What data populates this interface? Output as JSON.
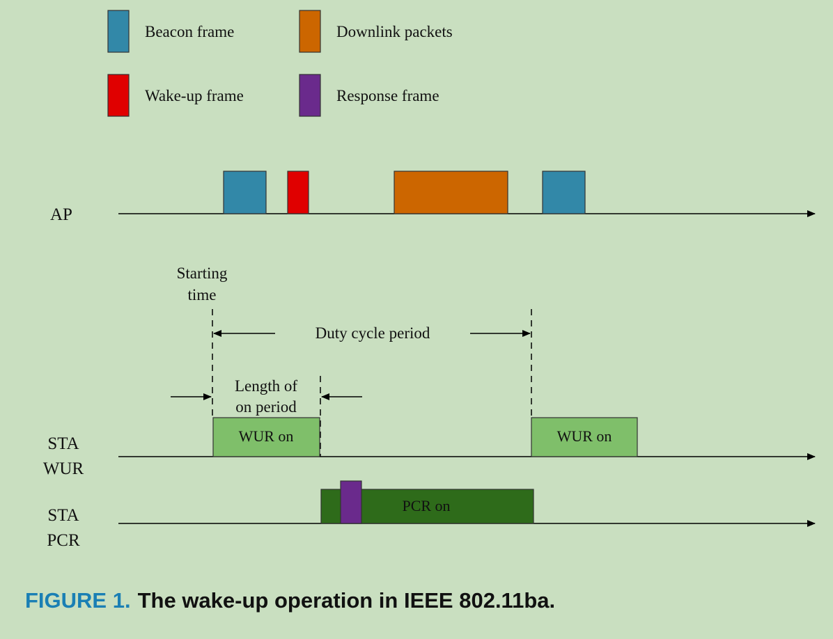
{
  "legend": {
    "beacon": {
      "label": "Beacon frame",
      "color": "#3288a8"
    },
    "downlink": {
      "label": "Downlink packets",
      "color": "#cc6600"
    },
    "wakeup": {
      "label": "Wake-up frame",
      "color": "#e00000"
    },
    "response": {
      "label": "Response frame",
      "color": "#6a2a8c"
    }
  },
  "rows": {
    "ap": "AP",
    "sta_wur_line1": "STA",
    "sta_wur_line2": "WUR",
    "sta_pcr_line1": "STA",
    "sta_pcr_line2": "PCR"
  },
  "annotations": {
    "starting_time_line1": "Starting",
    "starting_time_line2": "time",
    "duty_cycle_period": "Duty cycle period",
    "on_period_line1": "Length of",
    "on_period_line2": "on period"
  },
  "blocks": {
    "wur_on_1": "WUR on",
    "wur_on_2": "WUR on",
    "pcr_on": "PCR on",
    "wur_color": "#7fbf6a",
    "pcr_color": "#2e6b1a"
  },
  "caption": {
    "figure_label": "FIGURE 1.",
    "text": "The wake-up operation in IEEE 802.11ba."
  }
}
